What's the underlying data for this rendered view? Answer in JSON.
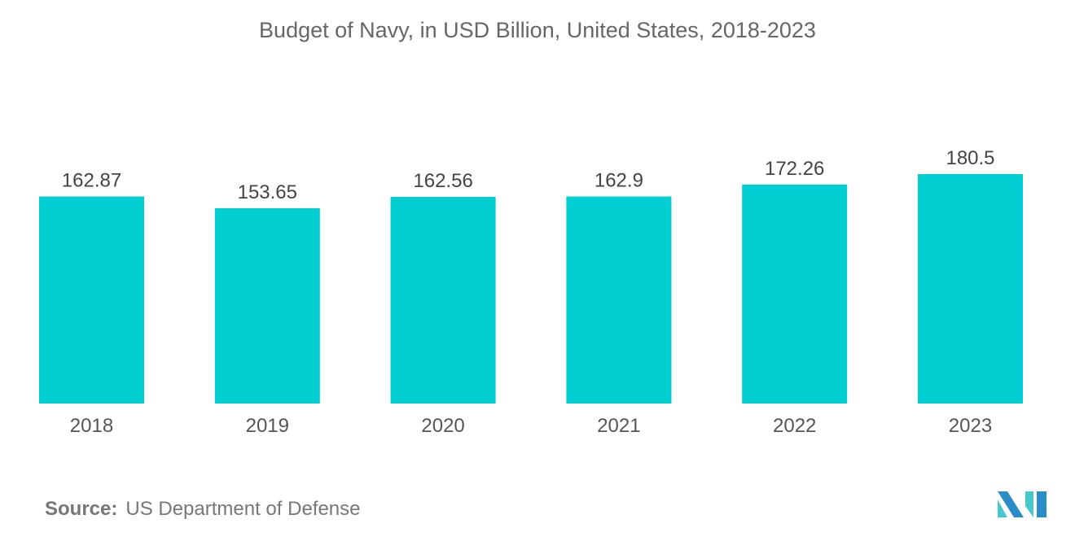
{
  "chart_data": {
    "type": "bar",
    "title": "Budget of Navy, in USD Billion, United States, 2018-2023",
    "categories": [
      "2018",
      "2019",
      "2020",
      "2021",
      "2022",
      "2023"
    ],
    "values": [
      162.87,
      153.65,
      162.56,
      162.9,
      172.26,
      180.5
    ],
    "value_labels": [
      "162.87",
      "153.65",
      "162.56",
      "162.9",
      "172.26",
      "180.5"
    ],
    "xlabel": "",
    "ylabel": "",
    "ylim": [
      0,
      180.5
    ],
    "grid": false,
    "bar_color": "#00CED1"
  },
  "source": {
    "label": "Source:",
    "text": "US Department of Defense"
  },
  "logo": {
    "colors": [
      "#2A8DC8",
      "#45C8CC"
    ]
  }
}
